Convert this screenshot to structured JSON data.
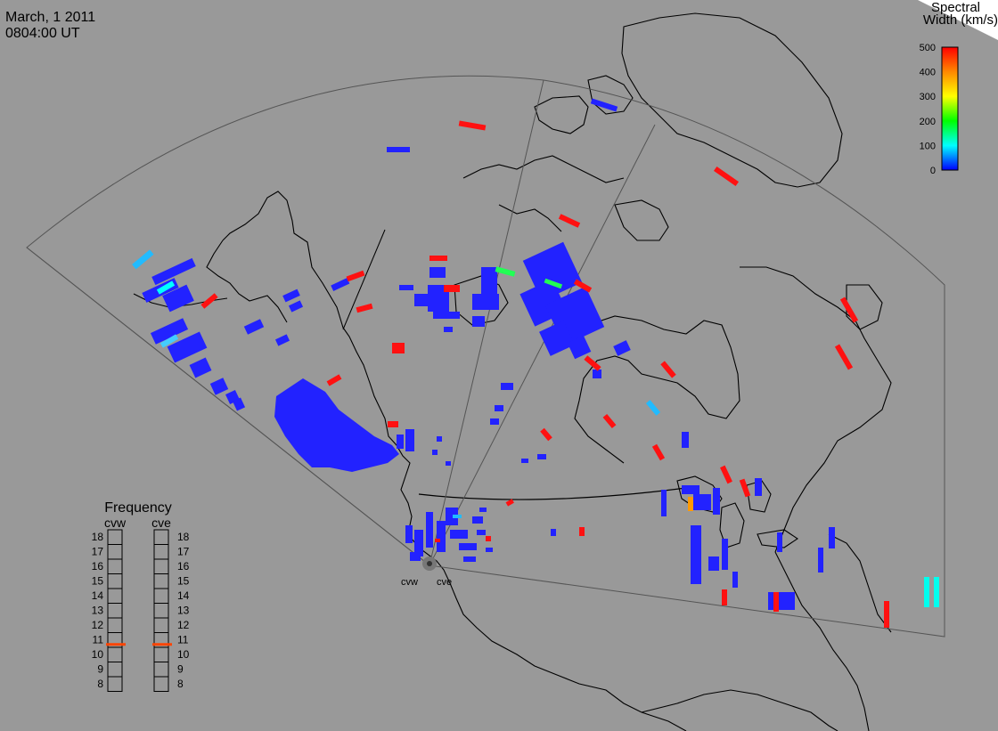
{
  "header": {
    "date": "March, 1 2011",
    "time": "0804:00 UT"
  },
  "colorbar": {
    "title_line1": "Spectral",
    "title_line2": "Width (km/s)",
    "ticks": [
      "500",
      "400",
      "300",
      "200",
      "100",
      "0"
    ],
    "stops": [
      "#ff0000",
      "#ff8800",
      "#ffff00",
      "#00ff00",
      "#00ffff",
      "#0000ff"
    ]
  },
  "frequency_panel": {
    "title": "Frequency",
    "radar_left": "cvw",
    "radar_right": "cve",
    "levels": [
      "18",
      "17",
      "16",
      "15",
      "14",
      "13",
      "12",
      "11",
      "10",
      "9",
      "8"
    ],
    "cvw_marker_mhz": 10.7,
    "cve_marker_mhz": 10.7,
    "marker_color": "#ff4400"
  },
  "radar_sites": {
    "left_label": "cvw",
    "right_label": "cve"
  },
  "colors": {
    "background": "#999999",
    "coastline": "#000000",
    "fov_outline": "#555555",
    "echo_low": "#2222ff",
    "echo_high": "#ff0000"
  }
}
